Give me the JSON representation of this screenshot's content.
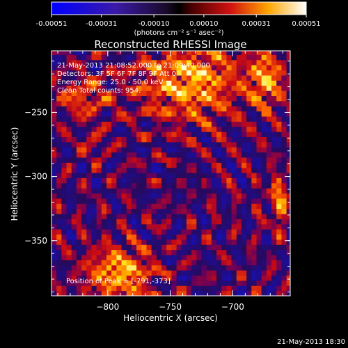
{
  "chart_data": {
    "type": "heatmap",
    "title": "Reconstructed RHESSI Image",
    "xlabel": "Heliocentric X (arcsec)",
    "ylabel": "Heliocentric Y (arcsec)",
    "xlim": [
      -845,
      -654
    ],
    "ylim": [
      -393,
      -202
    ],
    "x_ticks": [
      -800,
      -750,
      -700
    ],
    "y_ticks": [
      -250,
      -300,
      -350
    ],
    "colorbar": {
      "min": -0.00051,
      "max": 0.00051,
      "ticks": [
        "-0.00051",
        "-0.00031",
        "-0.00010",
        "0.00010",
        "0.00031",
        "0.00051"
      ],
      "label": "(photons cm⁻² s⁻¹ asec⁻²)"
    },
    "info_lines": [
      "21-May-2013 21:08:52.000 to 21:09:40.000",
      "Detectors: 3F 5F 6F 7F 8F 9F Att 0",
      "Energy Range: 25.0 - 50.0 keV",
      "Clean    Total counts: 954."
    ],
    "peak_label": "Position of Peak = [-791,-373]",
    "peak": [
      -791,
      -373
    ],
    "hot_sources": [
      {
        "x": -735,
        "y": -225,
        "rx": 40,
        "ry": 30,
        "amp": 0.00051
      },
      {
        "x": -673,
        "y": -224,
        "rx": 14,
        "ry": 22,
        "amp": 0.00045
      },
      {
        "x": -820,
        "y": -238,
        "rx": 22,
        "ry": 16,
        "amp": 0.0003
      },
      {
        "x": -791,
        "y": -375,
        "rx": 26,
        "ry": 20,
        "amp": 0.00051
      },
      {
        "x": -662,
        "y": -318,
        "rx": 10,
        "ry": 20,
        "amp": 0.00035
      },
      {
        "x": -812,
        "y": -275,
        "rx": 10,
        "ry": 10,
        "amp": 0.00018
      }
    ]
  },
  "footer": {
    "timestamp": "21-May-2013 18:30"
  }
}
